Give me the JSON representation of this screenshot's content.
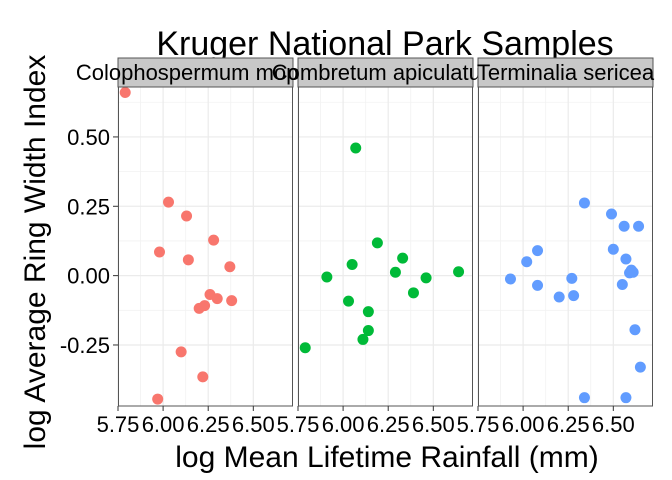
{
  "chart_data": {
    "type": "scatter",
    "title": "Kruger National Park Samples",
    "xlabel": "log Mean Lifetime Rainfall (mm)",
    "ylabel": "log Average Ring Width Index",
    "xlim": [
      5.75,
      6.72
    ],
    "ylim": [
      -0.47,
      0.68
    ],
    "x_ticks": [
      5.75,
      6.0,
      6.25,
      6.5
    ],
    "x_tick_labels": [
      "5.75",
      "6.00",
      "6.25",
      "6.50"
    ],
    "y_ticks": [
      -0.25,
      0.0,
      0.25,
      0.5
    ],
    "y_tick_labels": [
      "-0.25",
      "0.00",
      "0.25",
      "0.50"
    ],
    "grid": true,
    "legend": "none",
    "facets": [
      {
        "name": "Colophospermum mopane",
        "color": "#F8766D",
        "points": [
          {
            "x": 5.79,
            "y": 0.66
          },
          {
            "x": 6.03,
            "y": 0.265
          },
          {
            "x": 6.13,
            "y": 0.215
          },
          {
            "x": 5.98,
            "y": 0.085
          },
          {
            "x": 6.14,
            "y": 0.057
          },
          {
            "x": 6.28,
            "y": 0.128
          },
          {
            "x": 6.37,
            "y": 0.032
          },
          {
            "x": 6.26,
            "y": -0.068
          },
          {
            "x": 6.3,
            "y": -0.083
          },
          {
            "x": 6.38,
            "y": -0.09
          },
          {
            "x": 6.23,
            "y": -0.108
          },
          {
            "x": 6.2,
            "y": -0.118
          },
          {
            "x": 6.1,
            "y": -0.275
          },
          {
            "x": 6.22,
            "y": -0.365
          },
          {
            "x": 5.97,
            "y": -0.445
          }
        ]
      },
      {
        "name": "Combretum apiculatum",
        "color": "#00BA38",
        "points": [
          {
            "x": 5.79,
            "y": -0.26
          },
          {
            "x": 5.91,
            "y": -0.005
          },
          {
            "x": 6.03,
            "y": -0.092
          },
          {
            "x": 6.05,
            "y": 0.04
          },
          {
            "x": 6.07,
            "y": 0.46
          },
          {
            "x": 6.11,
            "y": -0.23
          },
          {
            "x": 6.14,
            "y": -0.198
          },
          {
            "x": 6.14,
            "y": -0.13
          },
          {
            "x": 6.19,
            "y": 0.118
          },
          {
            "x": 6.29,
            "y": 0.012
          },
          {
            "x": 6.33,
            "y": 0.063
          },
          {
            "x": 6.39,
            "y": -0.062
          },
          {
            "x": 6.46,
            "y": -0.008
          },
          {
            "x": 6.64,
            "y": 0.014
          }
        ]
      },
      {
        "name": "Terminalia sericea",
        "color": "#619CFF",
        "points": [
          {
            "x": 5.93,
            "y": -0.012
          },
          {
            "x": 6.02,
            "y": 0.05
          },
          {
            "x": 6.08,
            "y": 0.09
          },
          {
            "x": 6.08,
            "y": -0.035
          },
          {
            "x": 6.2,
            "y": -0.077
          },
          {
            "x": 6.27,
            "y": -0.01
          },
          {
            "x": 6.28,
            "y": -0.072
          },
          {
            "x": 6.34,
            "y": 0.262
          },
          {
            "x": 6.34,
            "y": -0.44
          },
          {
            "x": 6.49,
            "y": 0.222
          },
          {
            "x": 6.5,
            "y": 0.095
          },
          {
            "x": 6.56,
            "y": 0.178
          },
          {
            "x": 6.57,
            "y": 0.06
          },
          {
            "x": 6.55,
            "y": -0.032
          },
          {
            "x": 6.59,
            "y": 0.01
          },
          {
            "x": 6.6,
            "y": 0.02
          },
          {
            "x": 6.61,
            "y": 0.012
          },
          {
            "x": 6.62,
            "y": -0.195
          },
          {
            "x": 6.64,
            "y": 0.178
          },
          {
            "x": 6.65,
            "y": -0.33
          },
          {
            "x": 6.57,
            "y": -0.44
          }
        ]
      }
    ]
  }
}
